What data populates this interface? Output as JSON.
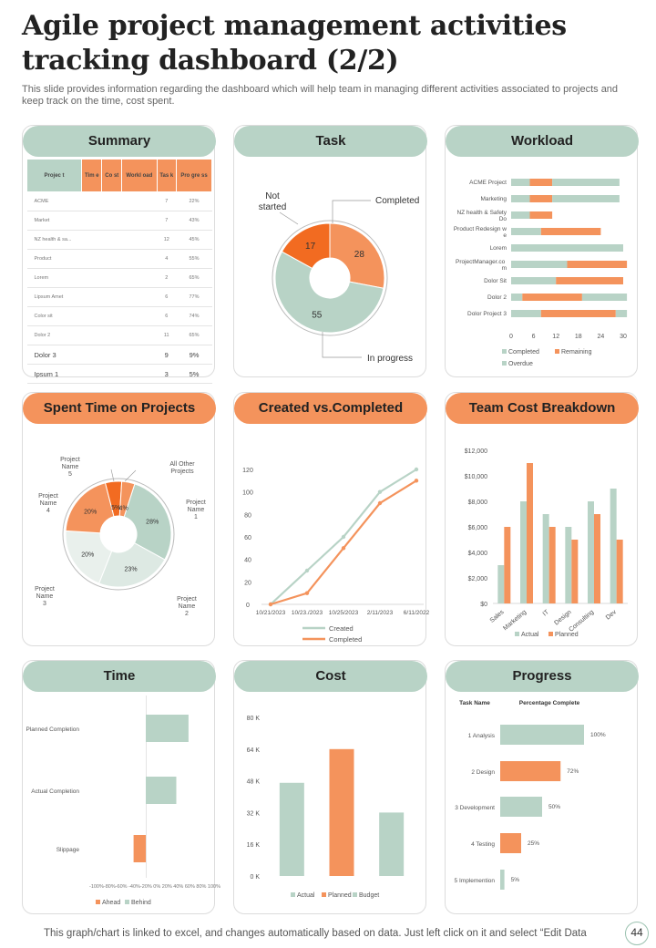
{
  "page": {
    "title": "Agile project management activities tracking dashboard (2/2)",
    "subtitle": "This slide provides information regarding the dashboard which will help team in managing different activities associated to projects and keep track on the time, cost spent.",
    "footer": "This graph/chart is linked to excel,  and changes automatically based on data. Just left click on it and select “Edit Data",
    "page_number": "44"
  },
  "colors": {
    "green": "#b8d3c6",
    "orange": "#f4935c",
    "dark_orange": "#f26b21",
    "light_green": "#dde9e3"
  },
  "summary": {
    "title": "Summary",
    "headers": [
      "Projec t",
      "Tim e",
      "Co st",
      "Workl oad",
      "Tas k",
      "Pro gre ss"
    ],
    "rows": [
      {
        "project": "ACME",
        "time": "",
        "cost": "",
        "workload": "",
        "task": "7",
        "progress": "22%"
      },
      {
        "project": "Market",
        "time": "",
        "cost": "",
        "workload": "",
        "task": "7",
        "progress": "43%"
      },
      {
        "project": "NZ health & sa...",
        "time": "",
        "cost": "",
        "workload": "",
        "task": "12",
        "progress": "45%"
      },
      {
        "project": "Product",
        "time": "",
        "cost": "",
        "workload": "",
        "task": "4",
        "progress": "55%"
      },
      {
        "project": "Lorem",
        "time": "",
        "cost": "",
        "workload": "",
        "task": "2",
        "progress": "65%"
      },
      {
        "project": "Lipsum Amet",
        "time": "",
        "cost": "",
        "workload": "",
        "task": "6",
        "progress": "77%"
      },
      {
        "project": "Color sit",
        "time": "",
        "cost": "",
        "workload": "",
        "task": "6",
        "progress": "74%"
      },
      {
        "project": "Dolor 2",
        "time": "",
        "cost": "",
        "workload": "",
        "task": "11",
        "progress": "65%"
      },
      {
        "project": "Dolor 3",
        "time": "",
        "cost": "",
        "workload": "",
        "task": "9",
        "progress": "9%"
      },
      {
        "project": "Ipsum 1",
        "time": "",
        "cost": "",
        "workload": "",
        "task": "3",
        "progress": "5%"
      }
    ]
  },
  "chart_data": [
    {
      "id": "task",
      "type": "pie",
      "title": "Task",
      "slices": [
        {
          "label": "Completed",
          "value": 28,
          "color": "#f4935c"
        },
        {
          "label": "In progress",
          "value": 55,
          "color": "#b8d3c6"
        },
        {
          "label": "Not started",
          "value": 17,
          "color": "#f26b21"
        }
      ]
    },
    {
      "id": "workload",
      "type": "bar",
      "orientation": "horizontal",
      "stacked": true,
      "title": "Workload",
      "categories": [
        "ACME Project",
        "Marketing",
        "NZ health & Safety Do",
        "Product Redesign we",
        "Lorem",
        "ProjectManager.co m",
        "Dolor Sit",
        "Dolor 2",
        "Dolor Project 3"
      ],
      "series": [
        {
          "name": "Completed",
          "color": "#b8d3c6",
          "values": [
            5,
            5,
            5,
            8,
            30,
            15,
            12,
            3,
            8
          ]
        },
        {
          "name": "Remaining",
          "color": "#f4935c",
          "values": [
            6,
            6,
            6,
            16,
            0,
            16,
            18,
            16,
            20
          ]
        },
        {
          "name": "Overdue",
          "color": "#b8d3c6",
          "values": [
            18,
            18,
            0,
            0,
            0,
            0,
            0,
            12,
            3
          ]
        }
      ],
      "xticks": [
        "0",
        "6",
        "12",
        "18",
        "24",
        "30"
      ],
      "xlim": [
        0,
        30
      ]
    },
    {
      "id": "spent_time",
      "type": "pie",
      "title": "Spent Time on Projects",
      "slices": [
        {
          "label": "Project Name 1",
          "value": 28,
          "color": "#b8d3c6",
          "value_label": "28%"
        },
        {
          "label": "Project Name 2",
          "value": 23,
          "color": "#dde9e3",
          "value_label": "23%"
        },
        {
          "label": "Project Name 3",
          "value": 20,
          "color": "#e9f0ec",
          "value_label": "20%"
        },
        {
          "label": "Project Name 4",
          "value": 20,
          "color": "#f4935c",
          "value_label": "20%"
        },
        {
          "label": "Project Name 5",
          "value": 5,
          "color": "#f26b21",
          "value_label": "5%"
        },
        {
          "label": "All Other Projects",
          "value": 4,
          "color": "#f4935c",
          "value_label": "4%"
        }
      ]
    },
    {
      "id": "created_completed",
      "type": "line",
      "title": "Created vs.Completed",
      "categories": [
        "10/21/2023",
        "10/23./2023",
        "10/25/2023",
        "2/11/2023",
        "6/11/2022"
      ],
      "series": [
        {
          "name": "Created",
          "color": "#b8d3c6",
          "values": [
            0,
            30,
            60,
            100,
            120
          ]
        },
        {
          "name": "Completed",
          "color": "#f4935c",
          "values": [
            0,
            10,
            50,
            90,
            110
          ]
        }
      ],
      "yticks": [
        "0",
        "20",
        "40",
        "60",
        "80",
        "100",
        "120"
      ],
      "ylim": [
        0,
        120
      ]
    },
    {
      "id": "team_cost",
      "type": "bar",
      "title": "Team Cost Breakdown",
      "categories": [
        "Sales",
        "Marketing",
        "IT",
        "Design",
        "Consulting",
        "Dev"
      ],
      "series": [
        {
          "name": "Actual",
          "color": "#b8d3c6",
          "values": [
            3000,
            8000,
            7000,
            6000,
            8000,
            9000
          ]
        },
        {
          "name": "Planned",
          "color": "#f4935c",
          "values": [
            6000,
            11000,
            6000,
            5000,
            7000,
            5000
          ]
        }
      ],
      "yticks": [
        "$0",
        "$2,000",
        "$4,000",
        "$6,000",
        "$8,000",
        "$10,000",
        "$12,000"
      ],
      "ylim": [
        0,
        12000
      ]
    },
    {
      "id": "time",
      "type": "bar",
      "orientation": "horizontal",
      "title": "Time",
      "categories": [
        "Planned Completion",
        "Actual Completion",
        "Slippage"
      ],
      "series": [
        {
          "name": "Ahead",
          "color": "#f4935c",
          "values": [
            null,
            null,
            -20
          ]
        },
        {
          "name": "Behind",
          "color": "#b8d3c6",
          "values": [
            70,
            50,
            null
          ]
        }
      ],
      "xticks_label": "-100%-80%-60% -40%-20% 0%  20%  40%  60% 80% 100%",
      "xlim": [
        -100,
        100
      ]
    },
    {
      "id": "cost",
      "type": "bar",
      "title": "Cost",
      "categories": [
        "Actual",
        "Planned",
        "Budget"
      ],
      "values": [
        47000,
        64000,
        32000
      ],
      "colors": [
        "#b8d3c6",
        "#f4935c",
        "#b8d3c6"
      ],
      "yticks": [
        "0 K",
        "16 K",
        "32 K",
        "48 K",
        "64 K",
        "80 K"
      ],
      "ylim": [
        0,
        80000
      ]
    },
    {
      "id": "progress",
      "type": "bar",
      "orientation": "horizontal",
      "title": "Progress",
      "col_task": "Task Name",
      "col_pct": "Percentage Complete",
      "categories": [
        "1 Analysis",
        "2 Design",
        "3 Development",
        "4 Testing",
        "5 Implemention"
      ],
      "values": [
        100,
        72,
        50,
        25,
        5
      ],
      "value_labels": [
        "100%",
        "72%",
        "50%",
        "25%",
        "5%"
      ],
      "colors": [
        "#b8d3c6",
        "#f4935c",
        "#b8d3c6",
        "#f4935c",
        "#b8d3c6"
      ],
      "xlim": [
        0,
        100
      ]
    }
  ]
}
